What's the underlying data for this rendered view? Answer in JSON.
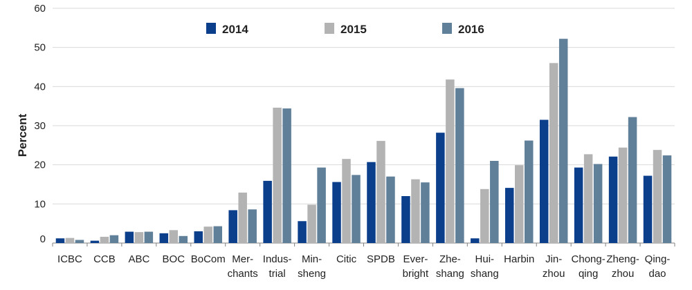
{
  "chart_data": {
    "type": "bar",
    "ylabel": "Percent",
    "ylim": [
      0,
      60
    ],
    "yticks": [
      0,
      10,
      20,
      30,
      40,
      50,
      60
    ],
    "grid": true,
    "legend_position": "top-center",
    "categories": [
      [
        "ICBC"
      ],
      [
        "CCB"
      ],
      [
        "ABC"
      ],
      [
        "BOC"
      ],
      [
        "BoCom"
      ],
      [
        "Mer-",
        "chants"
      ],
      [
        "Indus-",
        "trial"
      ],
      [
        "Min-",
        "sheng"
      ],
      [
        "Citic"
      ],
      [
        "SPDB"
      ],
      [
        "Ever-",
        "bright"
      ],
      [
        "Zhe-",
        "shang"
      ],
      [
        "Hui-",
        "shang"
      ],
      [
        "Harbin"
      ],
      [
        "Jin-",
        "zhou"
      ],
      [
        "Chong-",
        "qing"
      ],
      [
        "Zheng-",
        "zhou"
      ],
      [
        "Qing-",
        "dao"
      ]
    ],
    "series": [
      {
        "name": "2014",
        "color": "#0b3f8c",
        "values": [
          1.2,
          0.6,
          2.9,
          2.5,
          3.0,
          8.4,
          15.9,
          5.6,
          15.6,
          20.7,
          12.0,
          28.2,
          1.2,
          14.1,
          31.5,
          19.3,
          22.1,
          17.2
        ]
      },
      {
        "name": "2015",
        "color": "#b3b3b3",
        "values": [
          1.3,
          1.6,
          2.8,
          3.3,
          4.2,
          12.9,
          34.6,
          9.8,
          21.5,
          26.1,
          16.3,
          41.8,
          13.8,
          19.9,
          46.0,
          22.7,
          24.4,
          23.8
        ]
      },
      {
        "name": "2016",
        "color": "#607f99",
        "values": [
          0.8,
          2.0,
          2.9,
          1.8,
          4.3,
          8.6,
          34.4,
          19.3,
          17.4,
          17.0,
          15.5,
          39.6,
          21.0,
          26.2,
          52.2,
          20.2,
          32.2,
          22.4
        ]
      }
    ]
  }
}
